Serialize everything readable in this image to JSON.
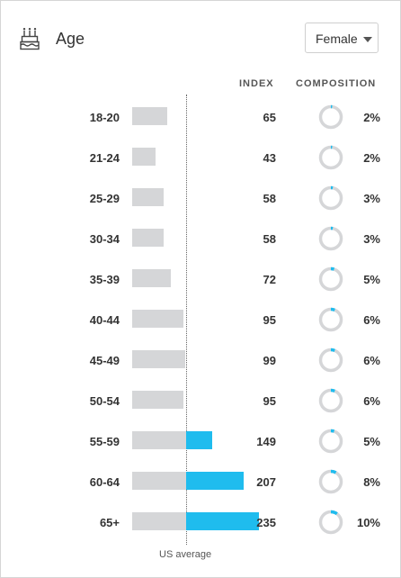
{
  "header": {
    "title": "Age",
    "icon": "birthday-cake-icon",
    "gender_select": {
      "selected": "Female"
    }
  },
  "columns": {
    "index": "INDEX",
    "composition": "COMPOSITION"
  },
  "footer": {
    "baseline_label": "US average"
  },
  "colors": {
    "accent": "#1fbcee",
    "bar_gray": "#d5d6d8",
    "ring_gray": "#d5d6d8"
  },
  "chart_data": {
    "type": "bar",
    "baseline": 100,
    "categories": [
      "18-20",
      "21-24",
      "25-29",
      "30-34",
      "35-39",
      "40-44",
      "45-49",
      "50-54",
      "55-59",
      "60-64",
      "65+"
    ],
    "index": [
      65,
      43,
      58,
      58,
      72,
      95,
      99,
      95,
      149,
      207,
      235
    ],
    "composition_pct": [
      2,
      2,
      3,
      3,
      5,
      6,
      6,
      6,
      5,
      8,
      10
    ],
    "rows": [
      {
        "age": "18-20",
        "index": "65",
        "composition": "2%"
      },
      {
        "age": "21-24",
        "index": "43",
        "composition": "2%"
      },
      {
        "age": "25-29",
        "index": "58",
        "composition": "3%"
      },
      {
        "age": "30-34",
        "index": "58",
        "composition": "3%"
      },
      {
        "age": "35-39",
        "index": "72",
        "composition": "5%"
      },
      {
        "age": "40-44",
        "index": "95",
        "composition": "6%"
      },
      {
        "age": "45-49",
        "index": "99",
        "composition": "6%"
      },
      {
        "age": "50-54",
        "index": "95",
        "composition": "6%"
      },
      {
        "age": "55-59",
        "index": "149",
        "composition": "5%"
      },
      {
        "age": "60-64",
        "index": "207",
        "composition": "8%"
      },
      {
        "age": "65+",
        "index": "235",
        "composition": "10%"
      }
    ]
  }
}
